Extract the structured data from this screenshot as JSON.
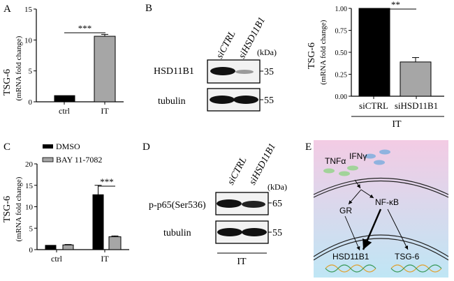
{
  "panels": {
    "A": {
      "letter": "A",
      "title": "TSG-6",
      "ylabel": "(mRNA fold change)",
      "sig": "***",
      "chart_data": {
        "type": "bar",
        "categories": [
          "ctrl",
          "IT"
        ],
        "values": [
          1.0,
          10.6
        ],
        "errors": [
          0.0,
          0.3
        ],
        "ylim": [
          0,
          15
        ],
        "yticks": [
          "0",
          "5",
          "10",
          "15"
        ],
        "colors": [
          "#000000",
          "#a6a6a6"
        ]
      }
    },
    "B_blot": {
      "letter": "B",
      "lanes": [
        "siCTRL",
        "siHSD11B1"
      ],
      "kda": "(kDa)",
      "rows": [
        {
          "label": "HSD11B1",
          "marker": "35"
        },
        {
          "label": "tubulin",
          "marker": "55"
        }
      ]
    },
    "B_chart": {
      "title": "TSG-6",
      "ylabel": "(mRNA fold change)",
      "sig": "**",
      "group_label": "IT",
      "chart_data": {
        "type": "bar",
        "categories": [
          "siCTRL",
          "siHSD11B1"
        ],
        "values": [
          1.0,
          0.39
        ],
        "errors": [
          0.0,
          0.05
        ],
        "ylim": [
          0,
          1.0
        ],
        "yticks": [
          "0.00",
          "0.25",
          "0.50",
          "0.75",
          "1.00"
        ],
        "colors": [
          "#000000",
          "#a6a6a6"
        ]
      }
    },
    "C": {
      "letter": "C",
      "title": "TSG-6",
      "ylabel": "(mRNA fold change)",
      "sig": "***",
      "chart_data": {
        "type": "bar",
        "categories": [
          "ctrl",
          "IT"
        ],
        "series": [
          {
            "name": "DMSO",
            "values": [
              1.0,
              12.8
            ],
            "errors": [
              0.0,
              2.2
            ],
            "color": "#000000"
          },
          {
            "name": "BAY 11-7082",
            "values": [
              1.1,
              3.0
            ],
            "errors": [
              0.1,
              0.2
            ],
            "color": "#a6a6a6"
          }
        ],
        "ylim": [
          0,
          20
        ],
        "yticks": [
          "0",
          "5",
          "10",
          "15",
          "20"
        ]
      }
    },
    "D": {
      "letter": "D",
      "lanes": [
        "siCTRL",
        "siHSD11B1"
      ],
      "kda": "(kDa)",
      "rows": [
        {
          "label": "p-p65(Ser536)",
          "marker": "65"
        },
        {
          "label": "tubulin",
          "marker": "55"
        }
      ],
      "group_label": "IT"
    },
    "E": {
      "letter": "E",
      "labels": {
        "tnf": "TNFα",
        "ifn": "IFNγ",
        "gr": "GR",
        "nfkb": "NF-κB",
        "hsd": "HSD11B1",
        "tsg": "TSG-6"
      },
      "colors": {
        "bg_top": "#f3cbe4",
        "bg_bottom": "#bfe6f5",
        "cytokine_blue": "#8fb3df",
        "cytokine_green": "#a2d39a"
      }
    }
  }
}
